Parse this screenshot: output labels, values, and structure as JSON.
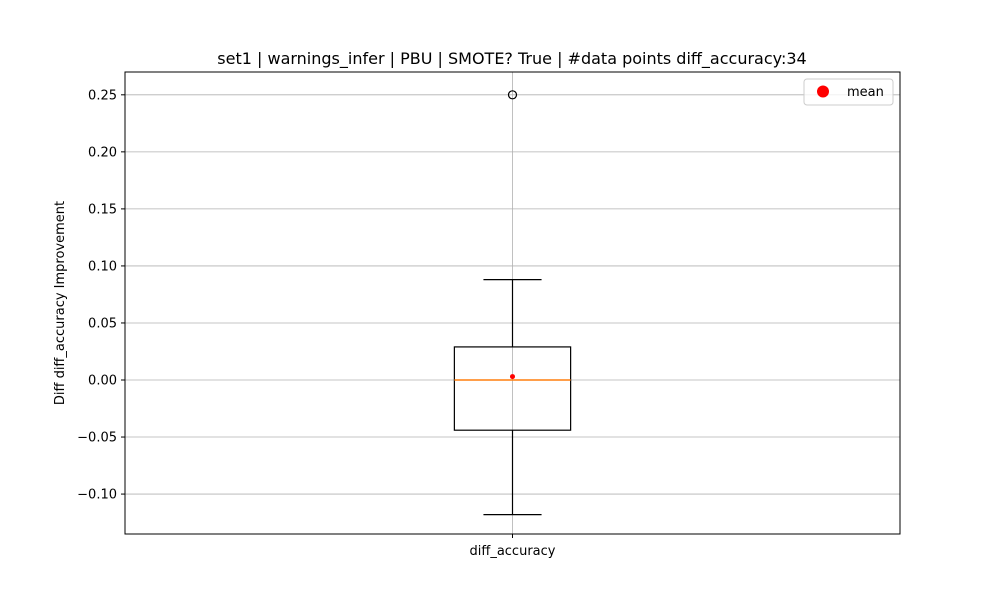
{
  "chart_data": {
    "type": "box",
    "title": "set1 | warnings_infer | PBU | SMOTE? True | #data points diff_accuracy:34",
    "xlabel": "",
    "ylabel": "Diff diff_accuracy Improvement",
    "categories": [
      "diff_accuracy"
    ],
    "ylim": [
      -0.135,
      0.27
    ],
    "yticks": [
      -0.1,
      -0.05,
      0.0,
      0.05,
      0.1,
      0.15,
      0.2,
      0.25
    ],
    "ytick_labels": [
      "−0.10",
      "−0.05",
      "0.00",
      "0.05",
      "0.10",
      "0.15",
      "0.20",
      "0.25"
    ],
    "grid": true,
    "legend": {
      "position": "top-right",
      "entries": [
        "mean"
      ]
    },
    "boxes": [
      {
        "name": "diff_accuracy",
        "whisker_low": -0.118,
        "q1": -0.044,
        "median": 0.0,
        "q3": 0.029,
        "whisker_high": 0.088,
        "mean": 0.003,
        "outliers": [
          0.25
        ]
      }
    ],
    "colors": {
      "box": "#000000",
      "median": "#ff7f0e",
      "mean": "#ff0000",
      "grid": "#b0b0b0"
    }
  }
}
